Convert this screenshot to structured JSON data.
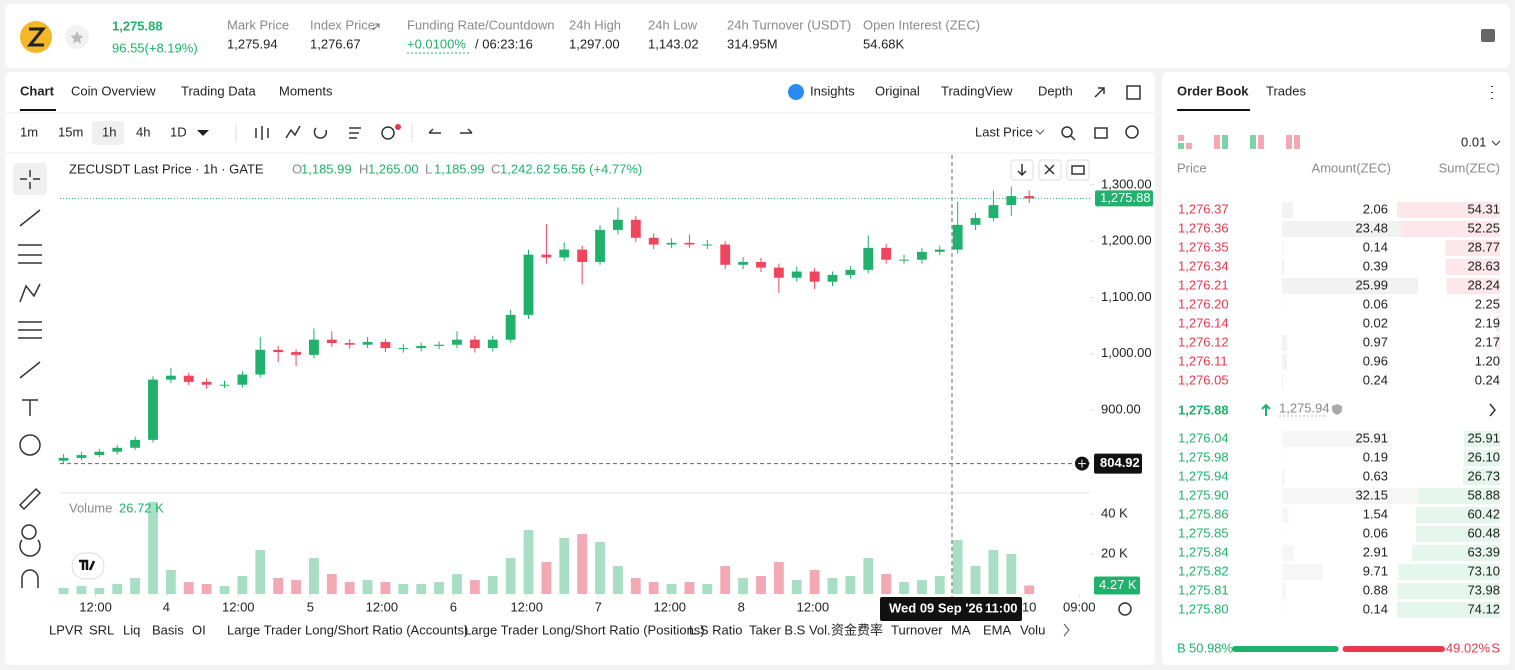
{
  "header": {
    "price": "1,275.88",
    "change": "96.55(+8.19%)",
    "stats": [
      {
        "label": "Mark Price",
        "value": "1,275.94"
      },
      {
        "label": "Index Price",
        "value": "1,276.67"
      },
      {
        "label": "Funding Rate/Countdown",
        "value": "+0.0100%",
        "extra": "/ 06:23:16"
      },
      {
        "label": "24h High",
        "value": "1,297.00"
      },
      {
        "label": "24h Low",
        "value": "1,143.02"
      },
      {
        "label": "24h Turnover (USDT)",
        "value": "314.95M"
      },
      {
        "label": "Open Interest (ZEC)",
        "value": "54.68K"
      }
    ]
  },
  "tabs": [
    "Chart",
    "Coin Overview",
    "Trading Data",
    "Moments"
  ],
  "views": [
    "Insights",
    "Original",
    "TradingView",
    "Depth"
  ],
  "intervals": [
    "1m",
    "15m",
    "1h",
    "4h",
    "1D"
  ],
  "price_source": "Last Price",
  "legend": {
    "title": "ZECUSDT Last Price · 1h · GATE",
    "ohlc": [
      {
        "k": "O",
        "v": "1,185.99"
      },
      {
        "k": "H",
        "v": "1,265.00"
      },
      {
        "k": "L",
        "v": "1,185.99"
      },
      {
        "k": "C",
        "v": "1,242.62"
      }
    ],
    "change": "56.56 (+4.77%)"
  },
  "chart_data": {
    "type": "candlestick",
    "candles": [
      [
        810,
        822,
        806,
        815
      ],
      [
        815,
        826,
        811,
        820
      ],
      [
        820,
        831,
        816,
        826
      ],
      [
        826,
        838,
        821,
        833
      ],
      [
        833,
        853,
        829,
        847
      ],
      [
        847,
        960,
        842,
        954
      ],
      [
        954,
        975,
        948,
        961
      ],
      [
        961,
        966,
        944,
        950
      ],
      [
        950,
        956,
        938,
        945
      ],
      [
        945,
        952,
        939,
        945
      ],
      [
        945,
        969,
        940,
        963
      ],
      [
        963,
        1030,
        958,
        1007
      ],
      [
        1007,
        1014,
        985,
        1003
      ],
      [
        1003,
        1008,
        978,
        998
      ],
      [
        998,
        1045,
        992,
        1025
      ],
      [
        1025,
        1040,
        1012,
        1019
      ],
      [
        1019,
        1026,
        1009,
        1016
      ],
      [
        1016,
        1030,
        1010,
        1021
      ],
      [
        1021,
        1026,
        1003,
        1010
      ],
      [
        1010,
        1017,
        1002,
        1010
      ],
      [
        1010,
        1020,
        1004,
        1014
      ],
      [
        1014,
        1022,
        1008,
        1016
      ],
      [
        1016,
        1040,
        1010,
        1025
      ],
      [
        1025,
        1032,
        1002,
        1010
      ],
      [
        1010,
        1032,
        1004,
        1025
      ],
      [
        1025,
        1078,
        1020,
        1069
      ],
      [
        1069,
        1185,
        1062,
        1176
      ],
      [
        1176,
        1230,
        1160,
        1171
      ],
      [
        1171,
        1198,
        1165,
        1185
      ],
      [
        1185,
        1192,
        1123,
        1163
      ],
      [
        1163,
        1228,
        1158,
        1220
      ],
      [
        1220,
        1260,
        1212,
        1238
      ],
      [
        1238,
        1245,
        1198,
        1206
      ],
      [
        1206,
        1214,
        1186,
        1194
      ],
      [
        1194,
        1205,
        1188,
        1197
      ],
      [
        1197,
        1212,
        1188,
        1194
      ],
      [
        1194,
        1202,
        1186,
        1194
      ],
      [
        1194,
        1200,
        1150,
        1158
      ],
      [
        1158,
        1172,
        1150,
        1163
      ],
      [
        1163,
        1170,
        1145,
        1153
      ],
      [
        1153,
        1160,
        1108,
        1135
      ],
      [
        1135,
        1155,
        1128,
        1146
      ],
      [
        1146,
        1152,
        1115,
        1128
      ],
      [
        1128,
        1146,
        1120,
        1140
      ],
      [
        1140,
        1156,
        1133,
        1149
      ],
      [
        1149,
        1210,
        1143,
        1188
      ],
      [
        1188,
        1195,
        1160,
        1167
      ],
      [
        1167,
        1176,
        1160,
        1167
      ],
      [
        1167,
        1188,
        1160,
        1181
      ],
      [
        1181,
        1192,
        1175,
        1185
      ],
      [
        1185,
        1270,
        1178,
        1229
      ],
      [
        1229,
        1250,
        1220,
        1241
      ],
      [
        1241,
        1290,
        1235,
        1264
      ],
      [
        1264,
        1297,
        1245,
        1280
      ],
      [
        1280,
        1290,
        1268,
        1275.88
      ]
    ],
    "volumes": [
      3,
      4,
      3,
      5,
      8,
      46,
      12,
      6,
      5,
      4,
      9,
      22,
      8,
      7,
      18,
      10,
      6,
      7,
      6,
      5,
      5,
      6,
      10,
      7,
      9,
      18,
      32,
      16,
      28,
      30,
      26,
      14,
      8,
      6,
      5,
      6,
      5,
      14,
      8,
      9,
      16,
      7,
      12,
      8,
      9,
      18,
      10,
      6,
      7,
      9,
      27,
      14,
      22,
      20,
      4.27
    ],
    "up_color": "#20b26c",
    "down_color": "#f0465d",
    "vol_up_color": "#a8dfc4",
    "vol_down_color": "#f2a9b3",
    "xlim": [
      -0.2,
      57.4
    ],
    "xticks": [
      {
        "value": 1.79,
        "label": "12:00"
      },
      {
        "value": 5.75,
        "label": "4"
      },
      {
        "value": 9.77,
        "label": "12:00"
      },
      {
        "value": 13.8,
        "label": "5"
      },
      {
        "value": 17.8,
        "label": "12:00"
      },
      {
        "value": 21.8,
        "label": "6"
      },
      {
        "value": 25.9,
        "label": "12:00"
      },
      {
        "value": 29.9,
        "label": "7"
      },
      {
        "value": 33.9,
        "label": "12:00"
      },
      {
        "value": 37.9,
        "label": "8"
      },
      {
        "value": 41.9,
        "label": "12:00"
      },
      {
        "value": 54.0,
        "label": "10"
      },
      {
        "value": 56.8,
        "label": "09:00"
      }
    ],
    "ylim": [
      758,
      1353
    ],
    "yticks": [
      {
        "value": 900,
        "label": "900.00"
      },
      {
        "value": 1000,
        "label": "1,000.00"
      },
      {
        "value": 1100,
        "label": "1,100.00"
      },
      {
        "value": 1200,
        "label": "1,200.00"
      },
      {
        "value": 1300,
        "label": "1,300.00"
      }
    ],
    "last_price": {
      "value": 1275.88,
      "label": "1,275.88"
    },
    "crosshair_price": {
      "value": 804.92,
      "label": "804.92"
    },
    "crosshair_date": "Wed 09 Sep '26",
    "crosshair_time": "11:00",
    "volume_title": "Volume",
    "volume_value": "26.72 K",
    "vol_ylim": [
      0,
      47
    ],
    "vol_yticks": [
      {
        "value": 20,
        "label": "20 K"
      },
      {
        "value": 40,
        "label": "40 K"
      }
    ],
    "last_volume_label": "4.27 K"
  },
  "indicators": [
    "LPVR",
    "SRL",
    "Liq",
    "Basis",
    "OI",
    "Large Trader Long/Short Ratio (Accounts)",
    "Large Trader Long/Short Ratio (Positions)",
    "L.S Ratio",
    "Taker B.S Vol.",
    "资金费率",
    "Turnover",
    "MA",
    "EMA",
    "Volu"
  ],
  "order_book": {
    "tabs": [
      "Order Book",
      "Trades"
    ],
    "precision": "0.01",
    "columns": [
      "Price",
      "Amount(ZEC)",
      "Sum(ZEC)"
    ],
    "asks": [
      [
        "1,276.37",
        "2.06",
        "54.31"
      ],
      [
        "1,276.36",
        "23.48",
        "52.25"
      ],
      [
        "1,276.35",
        "0.14",
        "28.77"
      ],
      [
        "1,276.34",
        "0.39",
        "28.63"
      ],
      [
        "1,276.21",
        "25.99",
        "28.24"
      ],
      [
        "1,276.20",
        "0.06",
        "2.25"
      ],
      [
        "1,276.14",
        "0.02",
        "2.19"
      ],
      [
        "1,276.12",
        "0.97",
        "2.17"
      ],
      [
        "1,276.11",
        "0.96",
        "1.20"
      ],
      [
        "1,276.05",
        "0.24",
        "0.24"
      ]
    ],
    "mid_price": "1,275.88",
    "mark_price": "1,275.94",
    "bids": [
      [
        "1,276.04",
        "25.91",
        "25.91"
      ],
      [
        "1,275.98",
        "0.19",
        "26.10"
      ],
      [
        "1,275.94",
        "0.63",
        "26.73"
      ],
      [
        "1,275.90",
        "32.15",
        "58.88"
      ],
      [
        "1,275.86",
        "1.54",
        "60.42"
      ],
      [
        "1,275.85",
        "0.06",
        "60.48"
      ],
      [
        "1,275.84",
        "2.91",
        "63.39"
      ],
      [
        "1,275.82",
        "9.71",
        "73.10"
      ],
      [
        "1,275.81",
        "0.88",
        "73.98"
      ],
      [
        "1,275.80",
        "0.14",
        "74.12"
      ]
    ],
    "buy_letter": "B",
    "sell_letter": "S",
    "buy": {
      "value": 50.98,
      "label": "50.98%"
    },
    "sell": {
      "value": 49.02,
      "label": "49.02%"
    }
  }
}
